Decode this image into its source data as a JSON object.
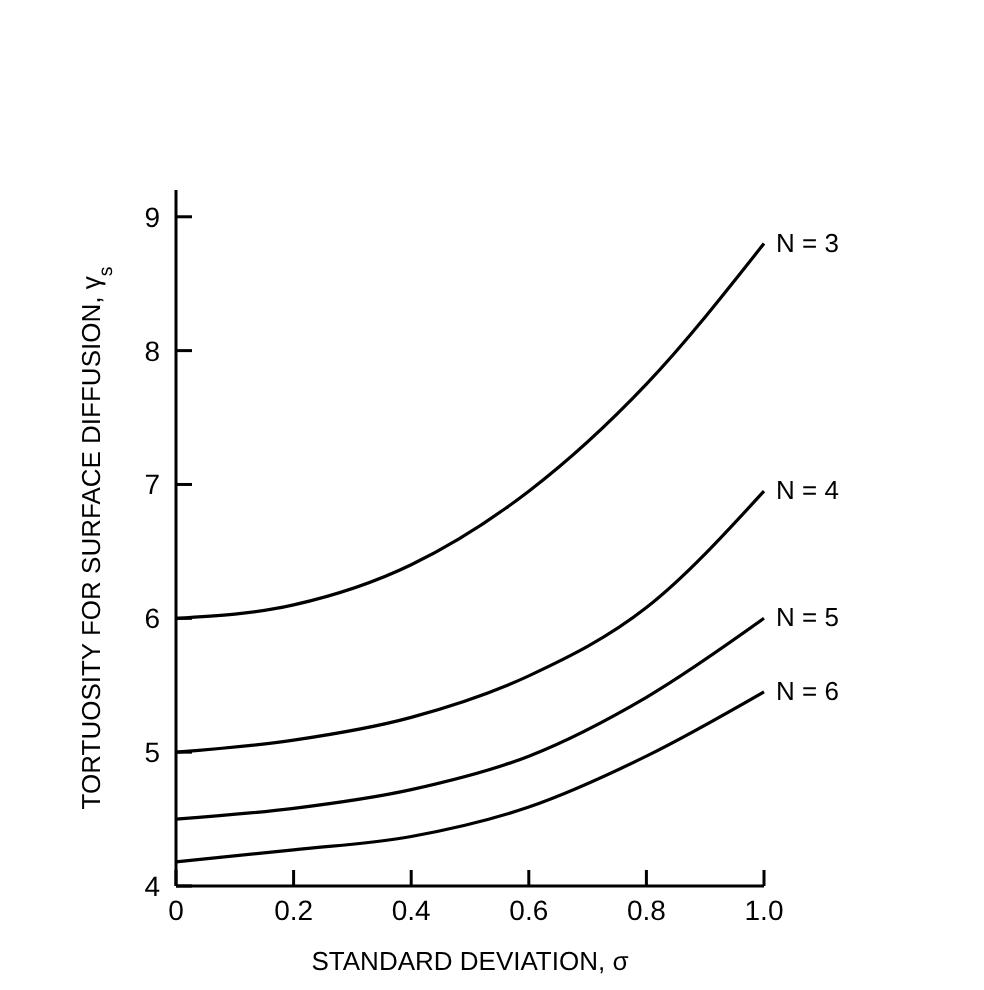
{
  "chart_data": {
    "type": "line",
    "xlabel": "STANDARD DEVIATION, σ",
    "ylabel": "TORTUOSITY FOR SURFACE DIFFUSION, γ$_{s}$",
    "x": [
      0,
      0.2,
      0.4,
      0.6,
      0.8,
      1.0
    ],
    "series": [
      {
        "name": "N = 3",
        "color": "#000000",
        "values": [
          6.0,
          6.1,
          6.4,
          6.95,
          7.75,
          8.8
        ]
      },
      {
        "name": "N = 4",
        "color": "#000000",
        "values": [
          5.0,
          5.09,
          5.26,
          5.57,
          6.08,
          6.95
        ]
      },
      {
        "name": "N = 5",
        "color": "#000000",
        "values": [
          4.5,
          4.58,
          4.72,
          4.97,
          5.41,
          6.0
        ]
      },
      {
        "name": "N = 6",
        "color": "#000000",
        "values": [
          4.18,
          4.27,
          4.37,
          4.59,
          4.97,
          5.45
        ]
      }
    ],
    "xlim": [
      0,
      1.0
    ],
    "ylim": [
      4,
      9.2
    ],
    "xticks": [
      0,
      0.2,
      0.4,
      0.6,
      0.8,
      {
        "value": 1,
        "label": "1.0"
      }
    ],
    "yticks": [
      4,
      5,
      6,
      7,
      8,
      9
    ],
    "grid": false,
    "marker": "none",
    "line_style": "solid"
  }
}
